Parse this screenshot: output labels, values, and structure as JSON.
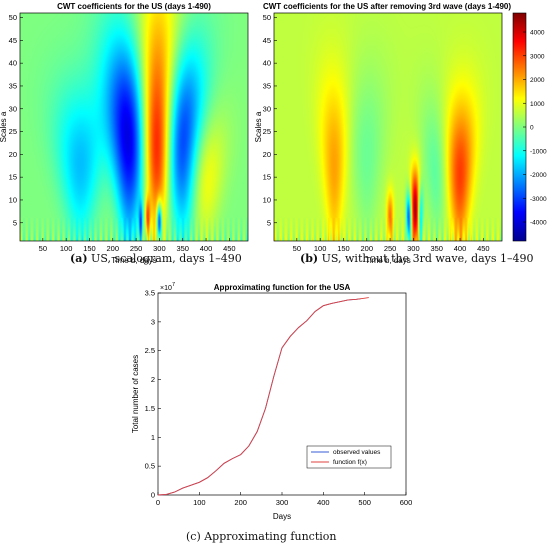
{
  "panels": [
    {
      "caption_letter": "(a)",
      "caption_text": " US, scalogram, days 1–490",
      "chart_data": {
        "type": "heatmap",
        "title": "CWT coefficients for the US (days 1-490)",
        "xlabel": "Time b, days",
        "ylabel": "Scales a",
        "xlim": [
          1,
          490
        ],
        "ylim": [
          1,
          51
        ],
        "xticks": [
          50,
          100,
          150,
          200,
          250,
          300,
          350,
          400,
          450
        ],
        "yticks": [
          5,
          10,
          15,
          20,
          25,
          30,
          35,
          40,
          45,
          50
        ],
        "colormap": "jet",
        "blobs": [
          {
            "t": 295,
            "s_center": 30,
            "s_spread": 18,
            "t_width": 25,
            "v": 4500
          },
          {
            "t": 235,
            "s_center": 25,
            "s_spread": 16,
            "t_width": 30,
            "v": -4000
          },
          {
            "t": 350,
            "s_center": 25,
            "s_spread": 14,
            "t_width": 30,
            "v": -3500
          },
          {
            "t": 130,
            "s_center": 18,
            "s_spread": 12,
            "t_width": 40,
            "v": -1800
          },
          {
            "t": 400,
            "s_center": 16,
            "s_spread": 10,
            "t_width": 35,
            "v": 1200
          },
          {
            "t": 300,
            "s_center": 5,
            "s_spread": 3,
            "t_width": 6,
            "v": -4500
          },
          {
            "t": 275,
            "s_center": 6,
            "s_spread": 3,
            "t_width": 6,
            "v": 2500
          },
          {
            "t": 260,
            "s_center": 5,
            "s_spread": 3,
            "t_width": 5,
            "v": -2500
          }
        ]
      }
    },
    {
      "caption_letter": "(b)",
      "caption_text": " US, without the 3rd wave, days 1–490",
      "chart_data": {
        "type": "heatmap",
        "title": "CWT coefficients for the US after removing 3rd wave (days 1-490)",
        "xlabel": "Time b, days",
        "ylabel": "Scales a",
        "xlim": [
          1,
          490
        ],
        "ylim": [
          1,
          51
        ],
        "xticks": [
          50,
          100,
          150,
          200,
          250,
          300,
          350,
          400,
          450
        ],
        "yticks": [
          5,
          10,
          15,
          20,
          25,
          30,
          35,
          40,
          45,
          50
        ],
        "colormap": "jet",
        "colorbar_ticks": [
          4000,
          3000,
          2000,
          1000,
          0,
          -1000,
          -2000,
          -3000,
          -4000
        ],
        "clim": [
          -4800,
          4800
        ],
        "blobs": [
          {
            "t": 130,
            "s_center": 18,
            "s_spread": 14,
            "t_width": 22,
            "v": 1500
          },
          {
            "t": 400,
            "s_center": 16,
            "s_spread": 12,
            "t_width": 25,
            "v": 2500
          },
          {
            "t": 305,
            "s_center": 8,
            "s_spread": 6,
            "t_width": 10,
            "v": 4000
          },
          {
            "t": 290,
            "s_center": 6,
            "s_spread": 4,
            "t_width": 6,
            "v": -3500
          },
          {
            "t": 315,
            "s_center": 7,
            "s_spread": 5,
            "t_width": 7,
            "v": -2500
          },
          {
            "t": 250,
            "s_center": 6,
            "s_spread": 4,
            "t_width": 8,
            "v": 2000
          },
          {
            "t": 200,
            "s_center": 20,
            "s_spread": 14,
            "t_width": 30,
            "v": -800
          },
          {
            "t": 350,
            "s_center": 18,
            "s_spread": 12,
            "t_width": 25,
            "v": -1000
          }
        ]
      }
    },
    {
      "caption_letter": "",
      "caption_text": "(c) Approximating function",
      "chart_data": {
        "type": "line",
        "title": "Approximating function for the USA",
        "xlabel": "Days",
        "ylabel": "Total number of cases",
        "xlim": [
          0,
          600
        ],
        "ylim": [
          0,
          3.5
        ],
        "y_multiplier": "×10",
        "y_exponent": "7",
        "xticks": [
          0,
          100,
          200,
          300,
          400,
          500,
          600
        ],
        "yticks": [
          0,
          0.5,
          1,
          1.5,
          2,
          2.5,
          3,
          3.5
        ],
        "legend_position": "bottom-right",
        "series": [
          {
            "name": "observed values",
            "color": "#3a5bd9",
            "x": [
              0,
              20,
              40,
              60,
              80,
              100,
              120,
              140,
              160,
              180,
              200,
              220,
              240,
              260,
              280,
              300,
              320,
              340,
              360,
              380,
              400,
              420,
              440,
              460,
              480,
              490
            ],
            "y": [
              0,
              0.01,
              0.05,
              0.12,
              0.17,
              0.22,
              0.3,
              0.42,
              0.55,
              0.63,
              0.7,
              0.85,
              1.1,
              1.5,
              2.05,
              2.55,
              2.75,
              2.9,
              3.02,
              3.18,
              3.28,
              3.32,
              3.35,
              3.38,
              3.39,
              3.4
            ]
          },
          {
            "name": "function f(x)",
            "color": "#e0403c",
            "x": [
              0,
              20,
              40,
              60,
              80,
              100,
              120,
              140,
              160,
              180,
              200,
              220,
              240,
              260,
              280,
              300,
              320,
              340,
              360,
              380,
              400,
              420,
              440,
              460,
              480,
              500,
              510
            ],
            "y": [
              0,
              0.01,
              0.05,
              0.12,
              0.17,
              0.22,
              0.3,
              0.42,
              0.55,
              0.63,
              0.7,
              0.85,
              1.1,
              1.5,
              2.05,
              2.55,
              2.75,
              2.9,
              3.02,
              3.18,
              3.28,
              3.32,
              3.35,
              3.38,
              3.39,
              3.41,
              3.42
            ]
          }
        ]
      }
    }
  ]
}
